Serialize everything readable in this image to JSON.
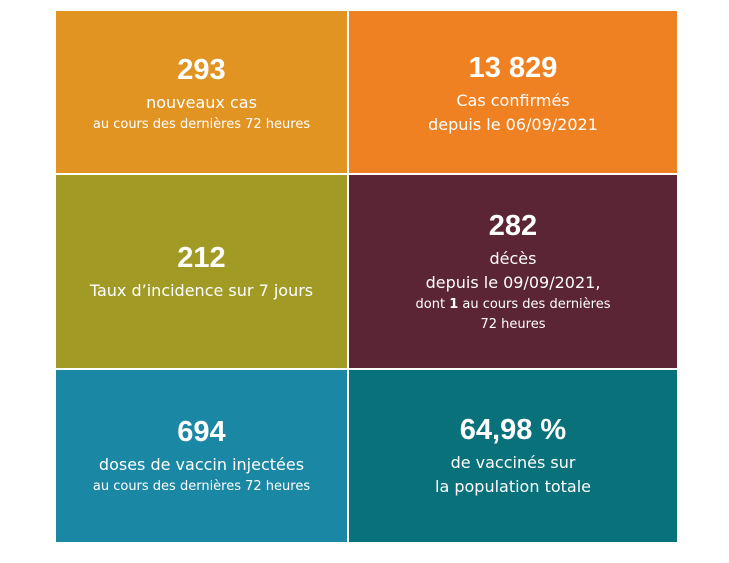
{
  "tiles": {
    "new_cases": {
      "value": "293",
      "line1": "nouveaux cas",
      "line2": "au cours des dernières 72 heures",
      "color": "#e29422"
    },
    "confirmed": {
      "value": "13 829",
      "line1": "Cas confirmés",
      "line2": "depuis le 06/09/2021",
      "color": "#ef8123"
    },
    "incidence": {
      "value": "212",
      "line1": "Taux d’incidence sur 7 jours",
      "color": "#a19b26"
    },
    "deaths": {
      "value": "282",
      "line1": "décès",
      "line2": "depuis le 09/09/2021,",
      "line3_prefix": "dont ",
      "line3_bold": "1",
      "line3_suffix": " au cours des dernières",
      "line4": "72 heures",
      "color": "#5c2535"
    },
    "doses": {
      "value": "694",
      "line1": "doses de vaccin injectées",
      "line2": "au cours des dernières 72 heures",
      "color": "#1a87a4"
    },
    "vaccinated": {
      "value": "64,98 %",
      "line1": "de vaccinés sur",
      "line2": "la population totale",
      "color": "#08717a"
    }
  }
}
